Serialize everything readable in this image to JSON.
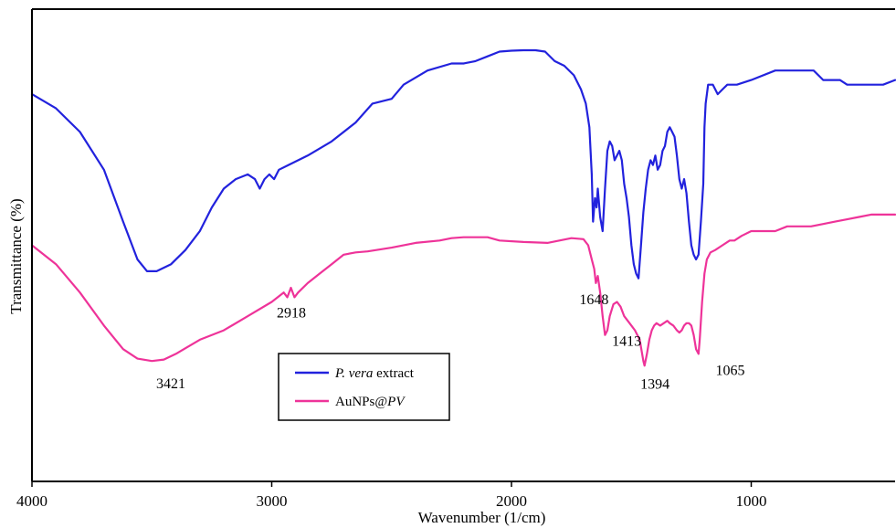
{
  "chart_data": {
    "type": "line",
    "title": "",
    "xlabel": "Wavenumber (1/cm)",
    "ylabel": "Transmittance (%)",
    "xlim": [
      4000,
      400
    ],
    "x_reversed": true,
    "y_ticks_shown": false,
    "grid": false,
    "legend_position": "lower-left",
    "x_ticks": [
      {
        "value": 4000,
        "label": "4000"
      },
      {
        "value": 3000,
        "label": "3000"
      },
      {
        "value": 2000,
        "label": "2000"
      },
      {
        "value": 1000,
        "label": "1000"
      }
    ],
    "ylim": [
      0,
      100
    ],
    "series": [
      {
        "name": "P. vera extract",
        "legend_parts": [
          {
            "text": "P. vera",
            "italic": true
          },
          {
            "text": " extract",
            "italic": false
          }
        ],
        "color": "#2222dd",
        "points": [
          [
            4000,
            82
          ],
          [
            3900,
            79
          ],
          [
            3800,
            74
          ],
          [
            3700,
            66
          ],
          [
            3620,
            55
          ],
          [
            3560,
            47
          ],
          [
            3520,
            44.5
          ],
          [
            3480,
            44.5
          ],
          [
            3420,
            46
          ],
          [
            3360,
            49
          ],
          [
            3300,
            53
          ],
          [
            3250,
            58
          ],
          [
            3200,
            62
          ],
          [
            3150,
            64
          ],
          [
            3100,
            65
          ],
          [
            3070,
            64
          ],
          [
            3050,
            62
          ],
          [
            3030,
            64
          ],
          [
            3010,
            65
          ],
          [
            2990,
            64
          ],
          [
            2970,
            66
          ],
          [
            2930,
            67
          ],
          [
            2850,
            69
          ],
          [
            2750,
            72
          ],
          [
            2650,
            76
          ],
          [
            2580,
            80
          ],
          [
            2500,
            81
          ],
          [
            2450,
            84
          ],
          [
            2350,
            87
          ],
          [
            2250,
            88.5
          ],
          [
            2200,
            88.5
          ],
          [
            2150,
            89
          ],
          [
            2100,
            90
          ],
          [
            2050,
            91
          ],
          [
            2000,
            91.2
          ],
          [
            1950,
            91.3
          ],
          [
            1900,
            91.3
          ],
          [
            1860,
            91
          ],
          [
            1820,
            89
          ],
          [
            1780,
            88
          ],
          [
            1740,
            86
          ],
          [
            1710,
            83
          ],
          [
            1690,
            80
          ],
          [
            1675,
            75
          ],
          [
            1665,
            65
          ],
          [
            1660,
            55
          ],
          [
            1652,
            60
          ],
          [
            1645,
            58
          ],
          [
            1640,
            62
          ],
          [
            1630,
            56
          ],
          [
            1620,
            53
          ],
          [
            1610,
            62
          ],
          [
            1600,
            70
          ],
          [
            1590,
            72
          ],
          [
            1580,
            71
          ],
          [
            1570,
            68
          ],
          [
            1560,
            69
          ],
          [
            1550,
            70
          ],
          [
            1540,
            68
          ],
          [
            1530,
            63
          ],
          [
            1520,
            60
          ],
          [
            1510,
            56
          ],
          [
            1500,
            50
          ],
          [
            1490,
            46
          ],
          [
            1480,
            44
          ],
          [
            1470,
            43
          ],
          [
            1460,
            50
          ],
          [
            1450,
            57
          ],
          [
            1440,
            62
          ],
          [
            1430,
            66
          ],
          [
            1420,
            68
          ],
          [
            1410,
            67
          ],
          [
            1400,
            69
          ],
          [
            1390,
            66
          ],
          [
            1380,
            67
          ],
          [
            1370,
            70
          ],
          [
            1360,
            71
          ],
          [
            1350,
            74
          ],
          [
            1340,
            75
          ],
          [
            1330,
            74
          ],
          [
            1320,
            73
          ],
          [
            1310,
            69
          ],
          [
            1300,
            64
          ],
          [
            1290,
            62
          ],
          [
            1280,
            64
          ],
          [
            1270,
            61
          ],
          [
            1260,
            55
          ],
          [
            1250,
            50
          ],
          [
            1240,
            48
          ],
          [
            1230,
            47
          ],
          [
            1220,
            48
          ],
          [
            1210,
            55
          ],
          [
            1200,
            63
          ],
          [
            1195,
            75
          ],
          [
            1190,
            80
          ],
          [
            1180,
            84
          ],
          [
            1160,
            84
          ],
          [
            1140,
            82
          ],
          [
            1120,
            83
          ],
          [
            1100,
            84
          ],
          [
            1060,
            84
          ],
          [
            1000,
            85
          ],
          [
            900,
            87
          ],
          [
            850,
            87
          ],
          [
            800,
            87
          ],
          [
            740,
            87
          ],
          [
            700,
            85
          ],
          [
            660,
            85
          ],
          [
            630,
            85
          ],
          [
            600,
            84
          ],
          [
            550,
            84
          ],
          [
            500,
            84
          ],
          [
            450,
            84
          ],
          [
            400,
            85
          ]
        ]
      },
      {
        "name": "AuNPs@PV",
        "legend_parts": [
          {
            "text": "AuNPs@",
            "italic": false
          },
          {
            "text": "PV",
            "italic": true
          }
        ],
        "color": "#ee3399",
        "points": [
          [
            4000,
            50
          ],
          [
            3900,
            46
          ],
          [
            3800,
            40
          ],
          [
            3700,
            33
          ],
          [
            3620,
            28
          ],
          [
            3560,
            26
          ],
          [
            3500,
            25.5
          ],
          [
            3450,
            25.8
          ],
          [
            3400,
            27
          ],
          [
            3300,
            30
          ],
          [
            3200,
            32
          ],
          [
            3100,
            35
          ],
          [
            3000,
            38
          ],
          [
            2950,
            40
          ],
          [
            2935,
            39
          ],
          [
            2920,
            41
          ],
          [
            2905,
            39
          ],
          [
            2890,
            40
          ],
          [
            2850,
            42
          ],
          [
            2800,
            44
          ],
          [
            2750,
            46
          ],
          [
            2700,
            48
          ],
          [
            2650,
            48.5
          ],
          [
            2600,
            48.7
          ],
          [
            2500,
            49.5
          ],
          [
            2400,
            50.5
          ],
          [
            2300,
            51
          ],
          [
            2250,
            51.5
          ],
          [
            2200,
            51.7
          ],
          [
            2100,
            51.7
          ],
          [
            2050,
            51
          ],
          [
            1950,
            50.7
          ],
          [
            1850,
            50.5
          ],
          [
            1800,
            51
          ],
          [
            1750,
            51.5
          ],
          [
            1700,
            51.3
          ],
          [
            1680,
            50
          ],
          [
            1665,
            47
          ],
          [
            1655,
            45
          ],
          [
            1648,
            42
          ],
          [
            1640,
            43.5
          ],
          [
            1630,
            40
          ],
          [
            1620,
            35
          ],
          [
            1610,
            31
          ],
          [
            1600,
            32
          ],
          [
            1590,
            35
          ],
          [
            1575,
            37.5
          ],
          [
            1560,
            38
          ],
          [
            1545,
            37
          ],
          [
            1530,
            35
          ],
          [
            1515,
            34
          ],
          [
            1500,
            33
          ],
          [
            1485,
            32
          ],
          [
            1465,
            30
          ],
          [
            1450,
            25.5
          ],
          [
            1445,
            24.5
          ],
          [
            1435,
            27
          ],
          [
            1425,
            30
          ],
          [
            1415,
            32
          ],
          [
            1405,
            33
          ],
          [
            1395,
            33.5
          ],
          [
            1380,
            33
          ],
          [
            1365,
            33.5
          ],
          [
            1350,
            34
          ],
          [
            1340,
            33.5
          ],
          [
            1325,
            33
          ],
          [
            1310,
            32
          ],
          [
            1300,
            31.5
          ],
          [
            1290,
            32
          ],
          [
            1280,
            33
          ],
          [
            1270,
            33.5
          ],
          [
            1260,
            33.5
          ],
          [
            1250,
            33
          ],
          [
            1240,
            31
          ],
          [
            1230,
            28
          ],
          [
            1220,
            27
          ],
          [
            1215,
            30
          ],
          [
            1205,
            38
          ],
          [
            1195,
            44
          ],
          [
            1185,
            47
          ],
          [
            1170,
            48.5
          ],
          [
            1150,
            49
          ],
          [
            1120,
            50
          ],
          [
            1090,
            51
          ],
          [
            1070,
            51
          ],
          [
            1040,
            52
          ],
          [
            1000,
            53
          ],
          [
            950,
            53
          ],
          [
            900,
            53
          ],
          [
            850,
            54
          ],
          [
            800,
            54
          ],
          [
            750,
            54
          ],
          [
            700,
            54.5
          ],
          [
            650,
            55
          ],
          [
            600,
            55.5
          ],
          [
            550,
            56
          ],
          [
            500,
            56.5
          ],
          [
            450,
            56.5
          ],
          [
            400,
            56.5
          ]
        ]
      }
    ],
    "annotations": [
      {
        "label": "3421",
        "x": 3421,
        "y": 25.5,
        "series": 1
      },
      {
        "label": "2918",
        "x": 2918,
        "y": 39,
        "series": 1
      },
      {
        "label": "1648",
        "x": 1648,
        "y": 42,
        "series": 1
      },
      {
        "label": "1413",
        "x": 1413,
        "y": 32,
        "series": 1
      },
      {
        "label": "1394",
        "x": 1394,
        "y": 24.5,
        "series": 1
      },
      {
        "label": "1065",
        "x": 1065,
        "y": 27,
        "series": 1
      }
    ]
  }
}
